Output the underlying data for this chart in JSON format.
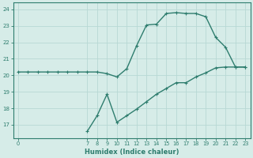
{
  "x_upper": [
    0,
    1,
    2,
    3,
    4,
    5,
    6,
    7,
    8,
    9,
    10,
    11,
    12,
    13,
    14,
    15,
    16,
    17,
    18,
    19,
    20,
    21,
    22,
    23
  ],
  "y_upper": [
    20.2,
    20.2,
    20.2,
    20.2,
    20.2,
    20.2,
    20.2,
    20.2,
    20.2,
    20.1,
    19.9,
    20.4,
    21.8,
    23.05,
    23.1,
    23.75,
    23.8,
    23.75,
    23.75,
    23.55,
    22.3,
    21.7,
    20.5,
    20.5
  ],
  "x_lower": [
    7,
    8,
    9,
    10,
    11,
    12,
    13,
    14,
    15,
    16,
    17,
    18,
    19,
    20,
    21,
    22,
    23
  ],
  "y_lower": [
    16.6,
    17.55,
    18.85,
    17.15,
    17.55,
    17.95,
    18.4,
    18.85,
    19.2,
    19.55,
    19.55,
    19.9,
    20.15,
    20.45,
    20.5,
    20.5,
    20.5
  ],
  "line_color": "#2e7d6e",
  "bg_color": "#d6ece8",
  "grid_color": "#b8d8d4",
  "xlabel": "Humidex (Indice chaleur)",
  "yticks": [
    17,
    18,
    19,
    20,
    21,
    22,
    23,
    24
  ],
  "xticks": [
    0,
    7,
    8,
    9,
    10,
    11,
    12,
    13,
    14,
    15,
    16,
    17,
    18,
    19,
    20,
    21,
    22,
    23
  ],
  "ylim": [
    16.2,
    24.4
  ],
  "xlim": [
    -0.5,
    23.5
  ],
  "markersize": 2.5,
  "linewidth": 1.0
}
